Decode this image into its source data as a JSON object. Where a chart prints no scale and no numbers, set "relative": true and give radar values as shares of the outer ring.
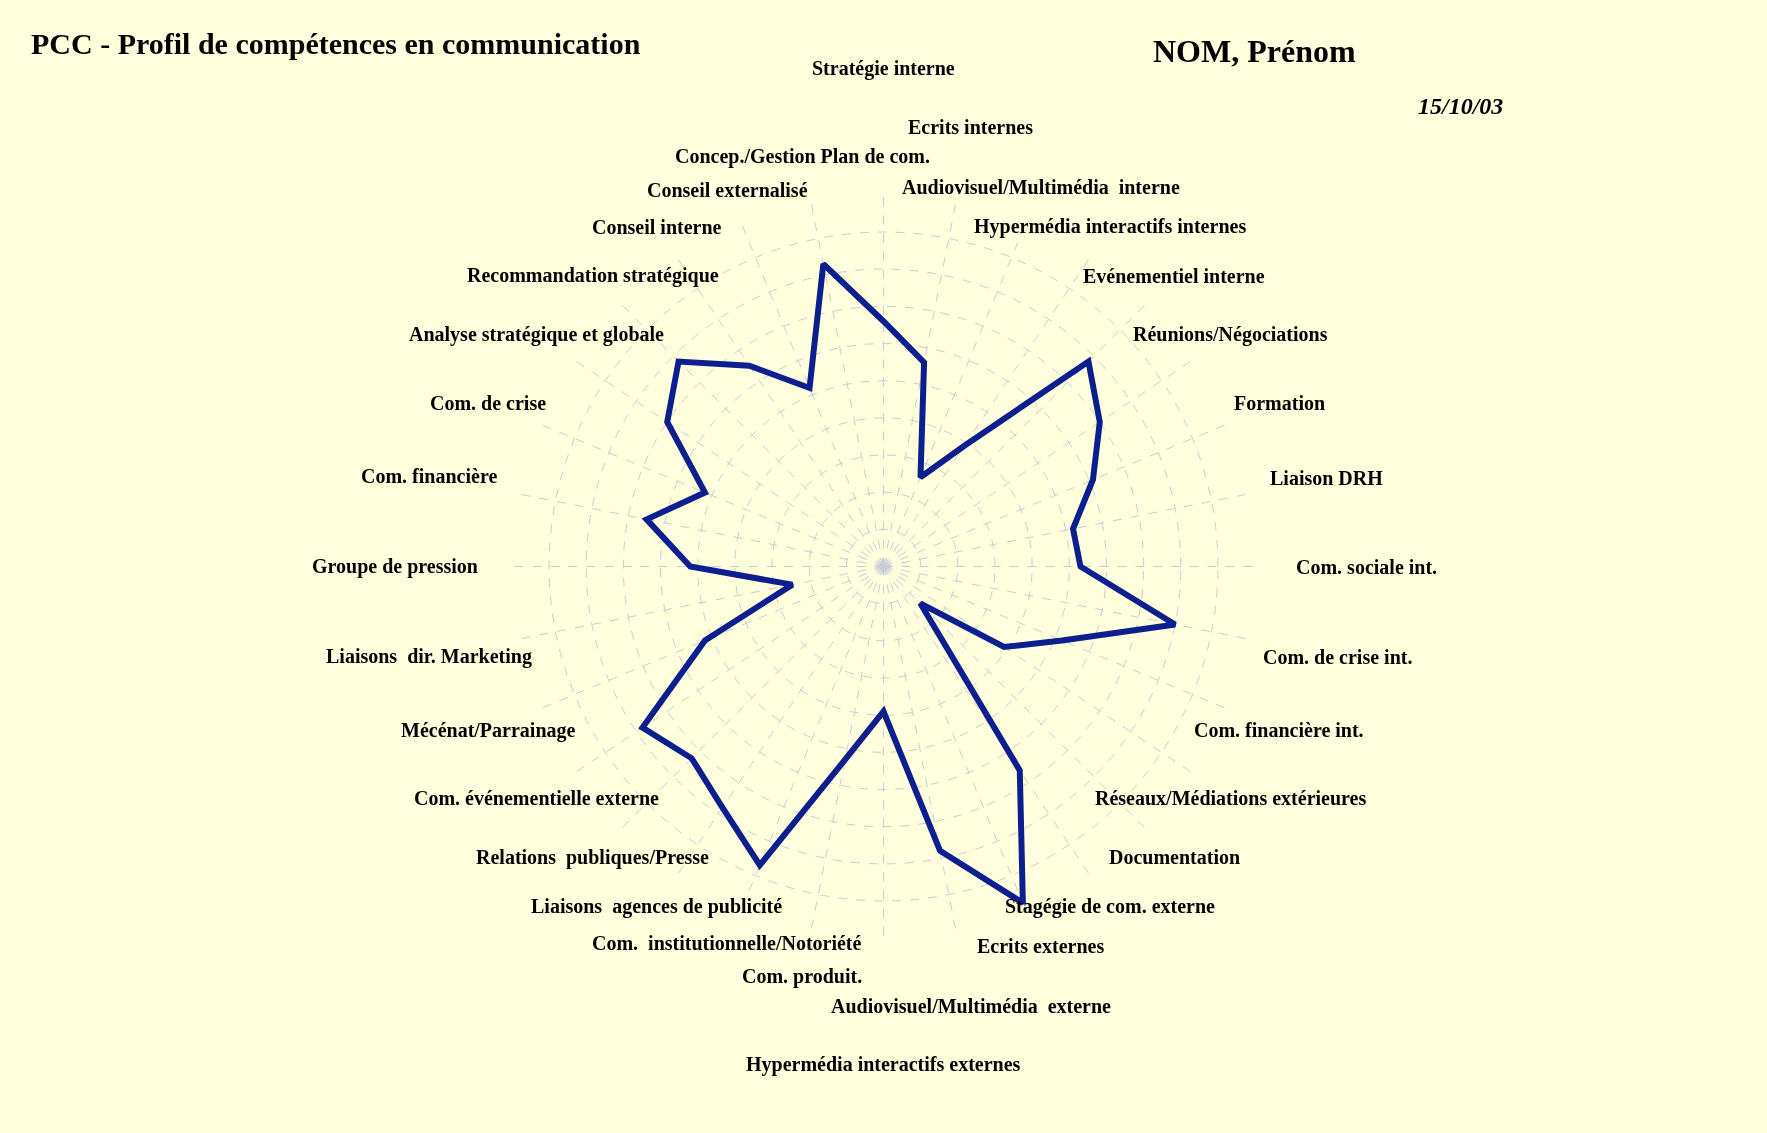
{
  "chart_data": {
    "type": "radar",
    "title": "PCC - Profil de compétences en communication",
    "subtitle": "NOM, Prénom",
    "annotations": [
      "15/10/03"
    ],
    "categories": [
      "Stratégie interne",
      "Ecrits internes",
      "Audiovisuel/Multimédia  interne",
      "Hypermédia interactifs internes",
      "Evénementiel interne",
      "Réunions/Négociations",
      "Formation",
      "Liaison DRH",
      "Com. sociale int.",
      "Com. de crise int.",
      "Com. financière int.",
      "Réseaux/Médiations extérieures",
      "Documentation",
      "Stagégie de com. externe",
      "Ecrits externes",
      "Audiovisuel/Multimédia  externe",
      "Hypermédia interactifs externes",
      "Com. produit.",
      "Com.  institutionnelle/Notoriété",
      "Liaisons  agences de publicité",
      "Relations  publiques/Presse",
      "Com. événementielle externe",
      "Mécénat/Parrainage",
      "Liaisons  dir. Marketing",
      "Groupe de pression",
      "Com. financière",
      "Com. de crise",
      "Analyse stratégique et globale",
      "Recommandation stratégique",
      "Conseil interne",
      "Conseil externalisé",
      "Concep./Gestion Plan de com."
    ],
    "relative": true,
    "series": [
      {
        "color": "#0d1f8f",
        "values": [
          0.66,
          0.56,
          0.26,
          0.39,
          0.78,
          0.7,
          0.61,
          0.52,
          0.53,
          0.8,
          0.52,
          0.39,
          0.14,
          0.66,
          0.98,
          0.78,
          0.39,
          0.53,
          0.87,
          0.78,
          0.73,
          0.78,
          0.52,
          0.25,
          0.52,
          0.65,
          0.52,
          0.7,
          0.78,
          0.65,
          0.52,
          0.83
        ]
      }
    ],
    "grid": true,
    "marker": "none",
    "line_style": "solid"
  }
}
